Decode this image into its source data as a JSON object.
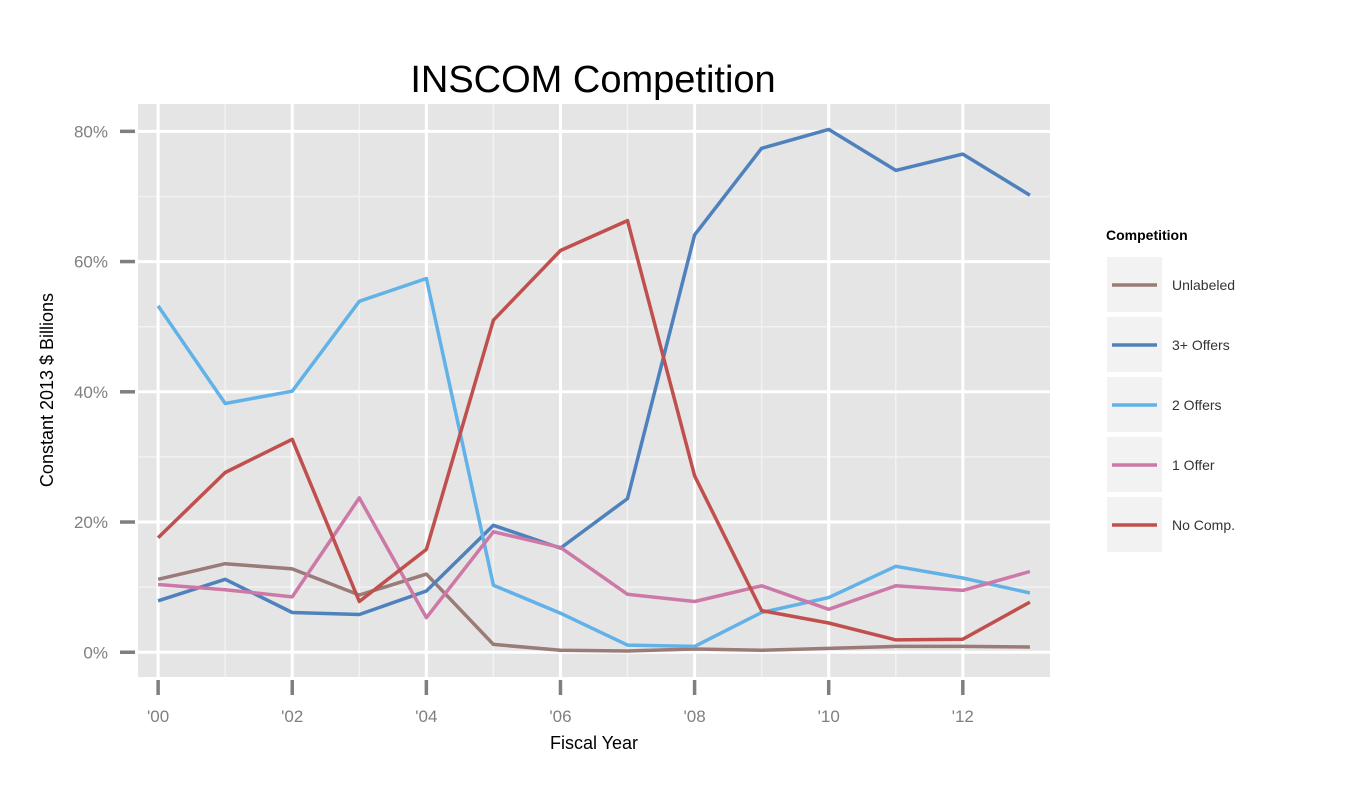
{
  "chart_data": {
    "type": "line",
    "title": "INSCOM Competition",
    "xlabel": "Fiscal Year",
    "ylabel": "Constant 2013 $ Billions",
    "x": [
      2000,
      2001,
      2002,
      2003,
      2004,
      2005,
      2006,
      2007,
      2008,
      2009,
      2010,
      2011,
      2012,
      2013
    ],
    "x_ticks": [
      2000,
      2002,
      2004,
      2006,
      2008,
      2010,
      2012
    ],
    "x_tick_labels": [
      "'00",
      "'02",
      "'04",
      "'06",
      "'08",
      "'10",
      "'12"
    ],
    "ylim": [
      -3.8,
      84.2
    ],
    "y_ticks": [
      0,
      20,
      40,
      60,
      80
    ],
    "y_tick_labels": [
      "0%",
      "20%",
      "40%",
      "60%",
      "80%"
    ],
    "grid": true,
    "legend": {
      "title": "Competition",
      "position": "right"
    },
    "series": [
      {
        "name": "Unlabeled",
        "color": "#9a7b78",
        "values": [
          11.2,
          13.6,
          12.8,
          8.8,
          12.0,
          1.2,
          0.3,
          0.2,
          0.5,
          0.3,
          0.6,
          0.9,
          0.9,
          0.8
        ]
      },
      {
        "name": "3+ Offers",
        "color": "#4f81bd",
        "values": [
          7.9,
          11.2,
          6.1,
          5.8,
          9.4,
          19.5,
          16.0,
          23.6,
          64.1,
          77.4,
          80.3,
          74.0,
          76.5,
          70.2
        ]
      },
      {
        "name": "2 Offers",
        "color": "#62b2e8",
        "values": [
          53.2,
          38.2,
          40.1,
          53.9,
          57.4,
          10.3,
          6.0,
          1.1,
          0.9,
          6.1,
          8.4,
          13.2,
          11.4,
          9.1
        ]
      },
      {
        "name": "1 Offer",
        "color": "#cc79a7",
        "values": [
          10.4,
          9.6,
          8.5,
          23.7,
          5.3,
          18.5,
          16.1,
          8.9,
          7.8,
          10.2,
          6.6,
          10.2,
          9.5,
          12.4
        ]
      },
      {
        "name": "No Comp.",
        "color": "#c0504d",
        "values": [
          17.6,
          27.6,
          32.7,
          7.8,
          15.8,
          51.0,
          61.7,
          66.3,
          27.1,
          6.4,
          4.5,
          1.9,
          2.0,
          7.7
        ]
      }
    ]
  },
  "colors": {
    "panel_background": "#e5e5e5",
    "grid_major": "#ffffff",
    "grid_minor": "#f2f2f2",
    "legend_key_background": "#f2f2f2",
    "tick_mark": "#7f7f7f"
  }
}
